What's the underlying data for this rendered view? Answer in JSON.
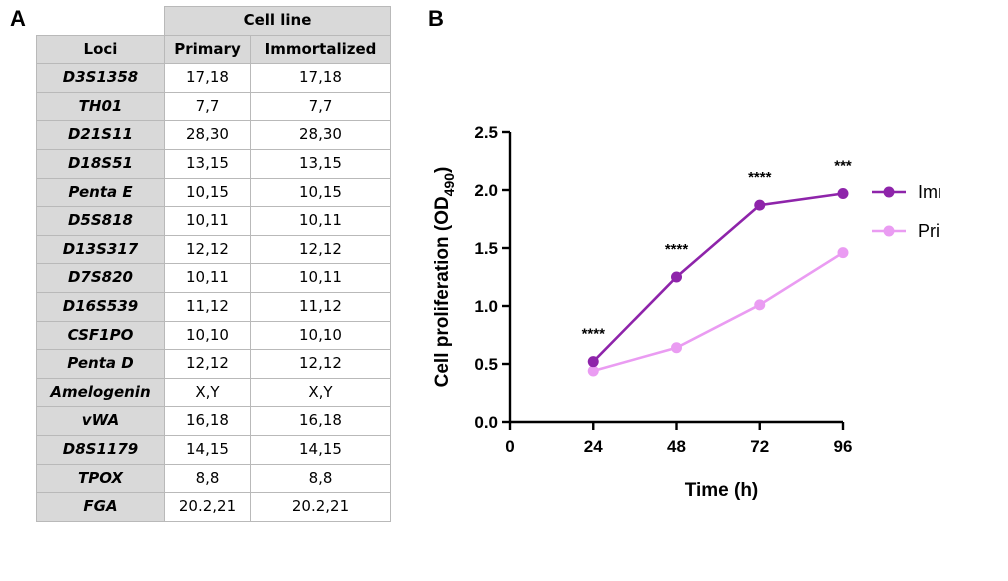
{
  "panels": {
    "a": "A",
    "b": "B"
  },
  "table": {
    "group_header": "Cell line",
    "col_headers": [
      "Loci",
      "Primary",
      "Immortalized"
    ],
    "rows": [
      {
        "locus": "D3S1358",
        "primary": "17,18",
        "immortalized": "17,18"
      },
      {
        "locus": "TH01",
        "primary": "7,7",
        "immortalized": "7,7"
      },
      {
        "locus": "D21S11",
        "primary": "28,30",
        "immortalized": "28,30"
      },
      {
        "locus": "D18S51",
        "primary": "13,15",
        "immortalized": "13,15"
      },
      {
        "locus": "Penta E",
        "primary": "10,15",
        "immortalized": "10,15"
      },
      {
        "locus": "D5S818",
        "primary": "10,11",
        "immortalized": "10,11"
      },
      {
        "locus": "D13S317",
        "primary": "12,12",
        "immortalized": "12,12"
      },
      {
        "locus": "D7S820",
        "primary": "10,11",
        "immortalized": "10,11"
      },
      {
        "locus": "D16S539",
        "primary": "11,12",
        "immortalized": "11,12"
      },
      {
        "locus": "CSF1PO",
        "primary": "10,10",
        "immortalized": "10,10"
      },
      {
        "locus": "Penta D",
        "primary": "12,12",
        "immortalized": "12,12"
      },
      {
        "locus": "Amelogenin",
        "primary": "X,Y",
        "immortalized": "X,Y"
      },
      {
        "locus": "vWA",
        "primary": "16,18",
        "immortalized": "16,18"
      },
      {
        "locus": "D8S1179",
        "primary": "14,15",
        "immortalized": "14,15"
      },
      {
        "locus": "TPOX",
        "primary": "8,8",
        "immortalized": "8,8"
      },
      {
        "locus": "FGA",
        "primary": "20.2,21",
        "immortalized": "20.2,21"
      }
    ]
  },
  "chart_data": {
    "type": "line",
    "x": [
      24,
      48,
      72,
      96
    ],
    "xlim": [
      0,
      96
    ],
    "ylim": [
      0,
      2.5
    ],
    "xticks": [
      0,
      24,
      48,
      72,
      96
    ],
    "yticks": [
      0.0,
      0.5,
      1.0,
      1.5,
      2.0,
      2.5
    ],
    "xtick_labels": [
      "0",
      "24",
      "48",
      "72",
      "96"
    ],
    "ytick_labels": [
      "0.0",
      "0.5",
      "1.0",
      "1.5",
      "2.0",
      "2.5"
    ],
    "xlabel": "Time (h)",
    "ylabel": {
      "main": "Cell proliferation (OD",
      "sub": "490",
      "close": ")"
    },
    "series": [
      {
        "name": "Imm.",
        "values": [
          0.52,
          1.25,
          1.87,
          1.97
        ],
        "color": "#8e24aa"
      },
      {
        "name": "Prim.",
        "values": [
          0.44,
          0.64,
          1.01,
          1.46
        ],
        "color": "#ea9cf2"
      }
    ],
    "significance": [
      {
        "x": 24,
        "label": "****"
      },
      {
        "x": 48,
        "label": "****"
      },
      {
        "x": 72,
        "label": "****"
      },
      {
        "x": 96,
        "label": "***"
      }
    ],
    "legend": "right"
  }
}
